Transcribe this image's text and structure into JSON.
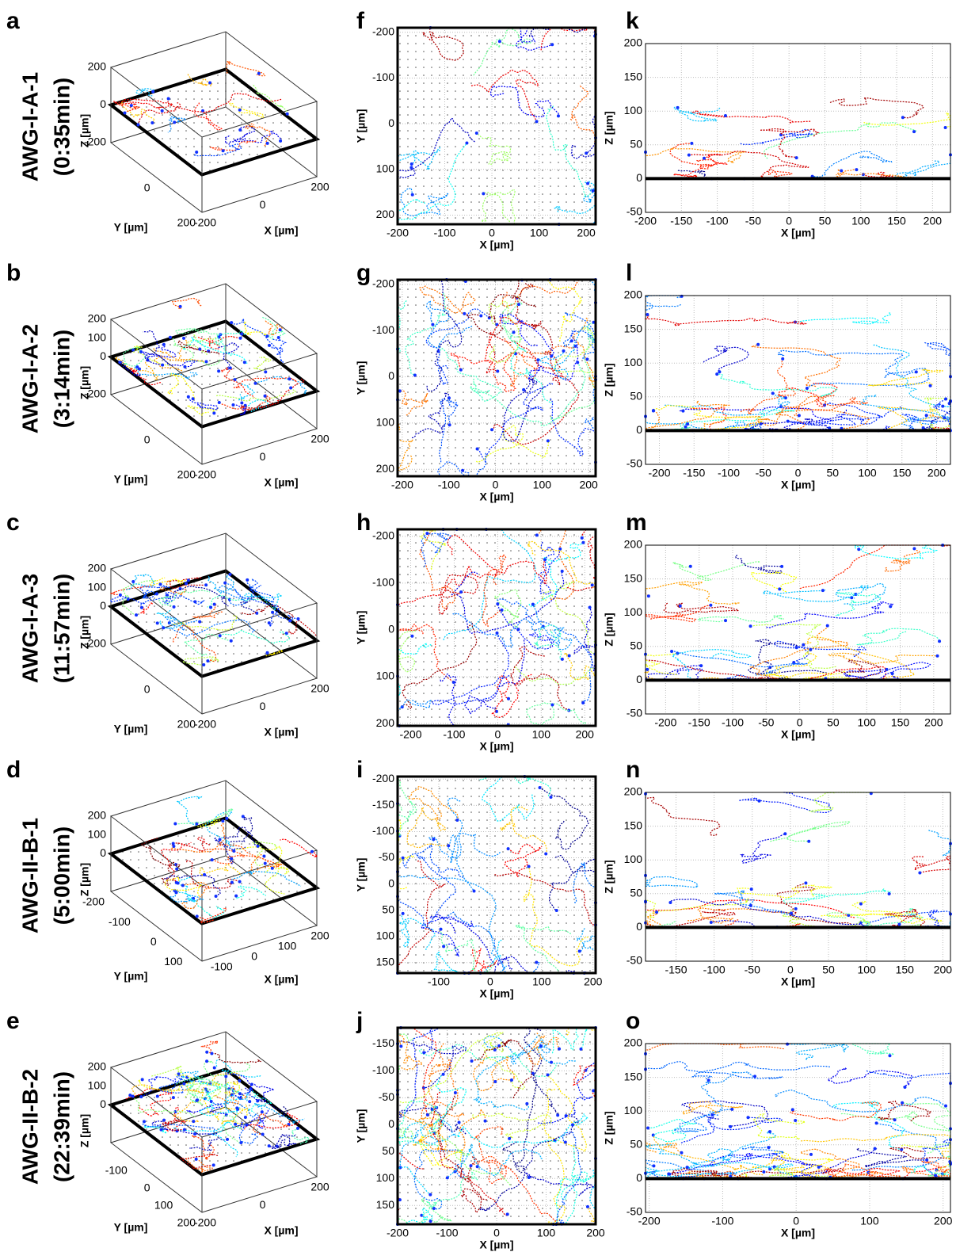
{
  "rows": [
    {
      "name": "AWG-I-A-1",
      "time": "(0:35min)",
      "box": {
        "letter": "a",
        "xlabel": "X [µm]",
        "ylabel": "Y [µm]",
        "zlabel": "Z [µm]",
        "xlim": [
          -200,
          200
        ],
        "ylim": [
          -200,
          200
        ],
        "zlim": [
          -200,
          200
        ],
        "xticks": [
          -200,
          0,
          200
        ],
        "yticks": [
          0,
          200
        ],
        "zticks": [
          -200,
          0,
          200
        ]
      },
      "xy": {
        "letter": "f",
        "xlabel": "X [µm]",
        "ylabel": "Y [µm]",
        "xlim": [
          -200,
          220
        ],
        "ylim": [
          -210,
          220
        ],
        "xticks": [
          -200,
          -100,
          0,
          100,
          200
        ],
        "yticks": [
          -200,
          -100,
          0,
          100,
          200
        ]
      },
      "xz": {
        "letter": "k",
        "xlabel": "X [µm]",
        "ylabel": "Z [µm]",
        "xlim": [
          -200,
          225
        ],
        "ylim": [
          -50,
          200
        ],
        "xticks": [
          -200,
          -150,
          -100,
          -50,
          0,
          50,
          100,
          150,
          200
        ],
        "yticks": [
          -50,
          0,
          50,
          100,
          150,
          200
        ]
      }
    },
    {
      "name": "AWG-I-A-2",
      "time": "(3:14min)",
      "box": {
        "letter": "b",
        "xlabel": "X [µm]",
        "ylabel": "Y [µm]",
        "zlabel": "Z [µm]",
        "xlim": [
          -200,
          200
        ],
        "ylim": [
          -200,
          200
        ],
        "zlim": [
          -200,
          200
        ],
        "xticks": [
          -200,
          0,
          200
        ],
        "yticks": [
          0,
          200
        ],
        "zticks": [
          -200,
          0,
          100,
          200
        ]
      },
      "xy": {
        "letter": "g",
        "xlabel": "X [µm]",
        "ylabel": "Y [µm]",
        "xlim": [
          -210,
          215
        ],
        "ylim": [
          -210,
          215
        ],
        "xticks": [
          -200,
          -100,
          0,
          100,
          200
        ],
        "yticks": [
          -200,
          -100,
          0,
          100,
          200
        ]
      },
      "xz": {
        "letter": "l",
        "xlabel": "X [µm]",
        "ylabel": "Z [µm]",
        "xlim": [
          -220,
          220
        ],
        "ylim": [
          -50,
          200
        ],
        "xticks": [
          -200,
          -150,
          -100,
          -50,
          0,
          50,
          100,
          150,
          200
        ],
        "yticks": [
          -50,
          0,
          50,
          100,
          150,
          200
        ]
      }
    },
    {
      "name": "AWG-I-A-3",
      "time": "(11:57min)",
      "box": {
        "letter": "c",
        "xlabel": "X [µm]",
        "ylabel": "Y [µm]",
        "zlabel": "Z [µm]",
        "xlim": [
          -200,
          200
        ],
        "ylim": [
          -200,
          200
        ],
        "zlim": [
          -200,
          200
        ],
        "xticks": [
          -200,
          0,
          200
        ],
        "yticks": [
          0,
          200
        ],
        "zticks": [
          -200,
          0,
          100,
          200
        ]
      },
      "xy": {
        "letter": "h",
        "xlabel": "X [µm]",
        "ylabel": "Y [µm]",
        "xlim": [
          -230,
          225
        ],
        "ylim": [
          -215,
          205
        ],
        "xticks": [
          -200,
          -100,
          0,
          100,
          200
        ],
        "yticks": [
          -200,
          -100,
          0,
          100,
          200
        ]
      },
      "xz": {
        "letter": "m",
        "xlabel": "X [µm]",
        "ylabel": "Z [µm]",
        "xlim": [
          -230,
          225
        ],
        "ylim": [
          -50,
          200
        ],
        "xticks": [
          -200,
          -150,
          -100,
          -50,
          0,
          50,
          100,
          150,
          200
        ],
        "yticks": [
          -50,
          0,
          50,
          100,
          150,
          200
        ]
      }
    },
    {
      "name": "AWG-II-B-1",
      "time": "(5:00min)",
      "box": {
        "letter": "d",
        "xlabel": "X [µm]",
        "ylabel": "Y [µm]",
        "zlabel": "Z [µm]",
        "xlim": [
          -150,
          200
        ],
        "ylim": [
          -200,
          150
        ],
        "zlim": [
          -200,
          200
        ],
        "xticks": [
          -100,
          0,
          100,
          200
        ],
        "yticks": [
          -200,
          -100,
          0,
          100
        ],
        "zticks": [
          0,
          100,
          200
        ]
      },
      "xy": {
        "letter": "i",
        "xlabel": "X [µm]",
        "ylabel": "Y [µm]",
        "xlim": [
          -180,
          205
        ],
        "ylim": [
          -205,
          170
        ],
        "xticks": [
          -100,
          0,
          100,
          200
        ],
        "yticks": [
          -200,
          -150,
          -100,
          -50,
          0,
          50,
          100,
          150
        ]
      },
      "xz": {
        "letter": "n",
        "xlabel": "X [µm]",
        "ylabel": "Z [µm]",
        "xlim": [
          -190,
          210
        ],
        "ylim": [
          -50,
          200
        ],
        "xticks": [
          -150,
          -100,
          -50,
          0,
          50,
          100,
          150,
          200
        ],
        "yticks": [
          -50,
          0,
          50,
          100,
          150,
          200
        ]
      }
    },
    {
      "name": "AWG-II-B-2",
      "time": "(22:39min)",
      "box": {
        "letter": "e",
        "xlabel": "X [µm]",
        "ylabel": "Y [µm]",
        "zlabel": "Z [µm]",
        "xlim": [
          -200,
          200
        ],
        "ylim": [
          -200,
          200
        ],
        "zlim": [
          -200,
          200
        ],
        "xticks": [
          -200,
          0,
          200
        ],
        "yticks": [
          -100,
          0,
          100,
          200
        ],
        "zticks": [
          0,
          100,
          200
        ]
      },
      "xy": {
        "letter": "j",
        "xlabel": "X [µm]",
        "ylabel": "Y [µm]",
        "xlim": [
          -200,
          200
        ],
        "ylim": [
          -180,
          185
        ],
        "xticks": [
          -200,
          -100,
          0,
          100,
          200
        ],
        "yticks": [
          -150,
          -100,
          -50,
          0,
          50,
          100,
          150
        ]
      },
      "xz": {
        "letter": "o",
        "xlabel": "X [µm]",
        "ylabel": "Z [µm]",
        "xlim": [
          -205,
          210
        ],
        "ylim": [
          -50,
          200
        ],
        "xticks": [
          -200,
          -100,
          0,
          100,
          200
        ],
        "yticks": [
          -50,
          0,
          50,
          100,
          150,
          200
        ]
      }
    }
  ]
}
